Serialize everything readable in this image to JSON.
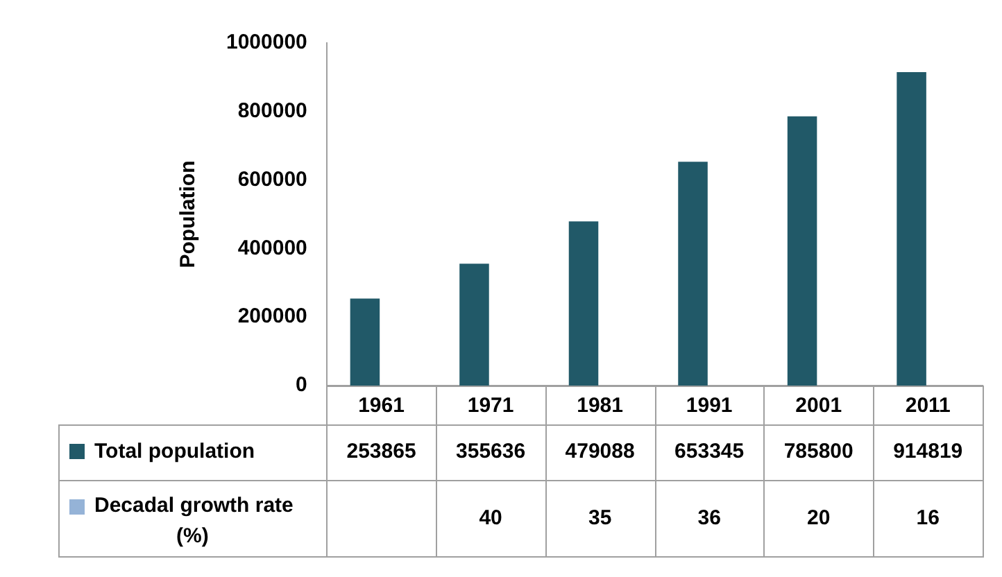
{
  "chart_data": {
    "type": "bar",
    "ylabel": "Population",
    "categories": [
      "1961",
      "1971",
      "1981",
      "1991",
      "2001",
      "2011"
    ],
    "series": [
      {
        "name": "Total population",
        "color": "#215968",
        "values": [
          253865,
          355636,
          479088,
          653345,
          785800,
          914819
        ]
      },
      {
        "name": "Decadal growth rate (%)",
        "color": "#95b3d7",
        "values": [
          null,
          40,
          35,
          36,
          20,
          16
        ]
      }
    ],
    "ylim": [
      0,
      1000000
    ],
    "yticks": [
      0,
      200000,
      400000,
      600000,
      800000,
      1000000
    ],
    "grid": false,
    "legend": "bottom",
    "data_labels": true
  }
}
